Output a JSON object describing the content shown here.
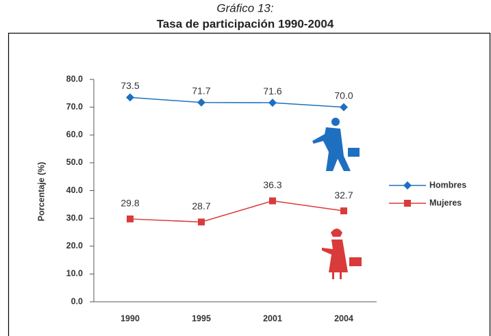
{
  "chart_data": {
    "type": "line",
    "title": "Gráfico 13:",
    "subtitle": "Tasa de participación 1990-2004",
    "y_label": "Porcentaje (%)",
    "categories": [
      "1990",
      "1995",
      "2001",
      "2004"
    ],
    "series": [
      {
        "name": "Hombres",
        "color": "#1f6fc0",
        "marker": "diamond",
        "values": [
          73.5,
          71.7,
          71.6,
          70.0
        ],
        "value_labels": [
          "73.5",
          "71.7",
          "71.6",
          "70.0"
        ]
      },
      {
        "name": "Mujeres",
        "color": "#d93a3a",
        "marker": "square",
        "values": [
          29.8,
          28.7,
          36.3,
          32.7
        ],
        "value_labels": [
          "29.8",
          "28.7",
          "36.3",
          "32.7"
        ]
      }
    ],
    "ylim": [
      0,
      80
    ],
    "yticks": [
      {
        "value": 0,
        "label": "0.0"
      },
      {
        "value": 10,
        "label": "10.0"
      },
      {
        "value": 20,
        "label": "20.0"
      },
      {
        "value": 30,
        "label": "30.0"
      },
      {
        "value": 40,
        "label": "40.0"
      },
      {
        "value": 50,
        "label": "50.0"
      },
      {
        "value": 60,
        "label": "60.0"
      },
      {
        "value": 70,
        "label": "70.0"
      },
      {
        "value": 80,
        "label": "80.0"
      }
    ],
    "legend": "right"
  }
}
